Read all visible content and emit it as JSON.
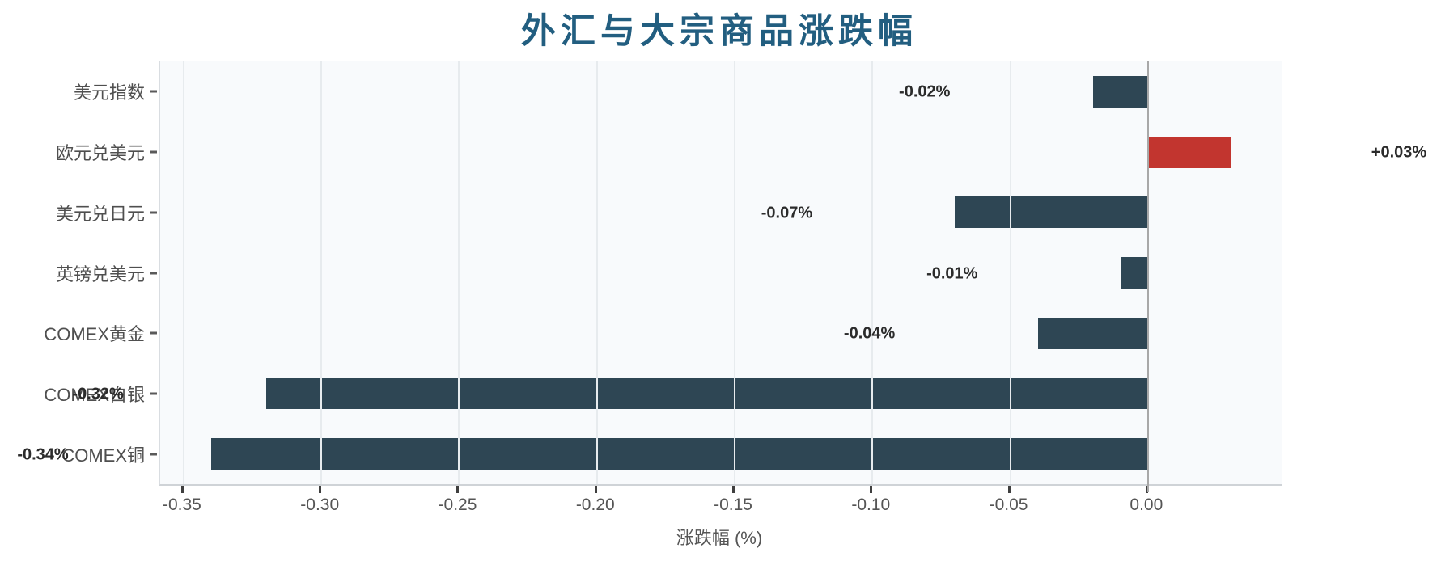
{
  "title": {
    "text": "外汇与大宗商品涨跌幅",
    "color": "#225e80"
  },
  "chart_data": {
    "type": "bar",
    "orientation": "horizontal",
    "title": "外汇与大宗商品涨跌幅",
    "categories": [
      "美元指数",
      "欧元兑美元",
      "美元兑日元",
      "英镑兑美元",
      "COMEX黄金",
      "COMEX白银",
      "COMEX铜"
    ],
    "values": [
      -0.02,
      0.03,
      -0.07,
      -0.01,
      -0.04,
      -0.32,
      -0.34
    ],
    "value_labels": [
      "-0.02%",
      "+0.03%",
      "-0.07%",
      "-0.01%",
      "-0.04%",
      "-0.32%",
      "-0.34%"
    ],
    "xlabel": "涨跌幅 (%)",
    "ylabel": "",
    "xlim": [
      -0.3585,
      0.0485
    ],
    "x_ticks": [
      -0.35,
      -0.3,
      -0.25,
      -0.2,
      -0.15,
      -0.1,
      -0.05,
      0.0
    ],
    "x_tick_labels": [
      "-0.35",
      "-0.30",
      "-0.25",
      "-0.20",
      "-0.15",
      "-0.10",
      "-0.05",
      "0.00"
    ],
    "grid": true,
    "legend": false,
    "colors": {
      "negative_bar": "#2e4654",
      "positive_bar": "#c2352f",
      "plot_background": "#f8fafc",
      "figure_background": "#ffffff",
      "grid_line": "#e7ebee",
      "zero_line": "#a8a8a8",
      "tick_text": "#555555",
      "category_text": "#4f4f4f",
      "value_label_text": "#2b2b2b",
      "title_text": "#225e80"
    }
  }
}
